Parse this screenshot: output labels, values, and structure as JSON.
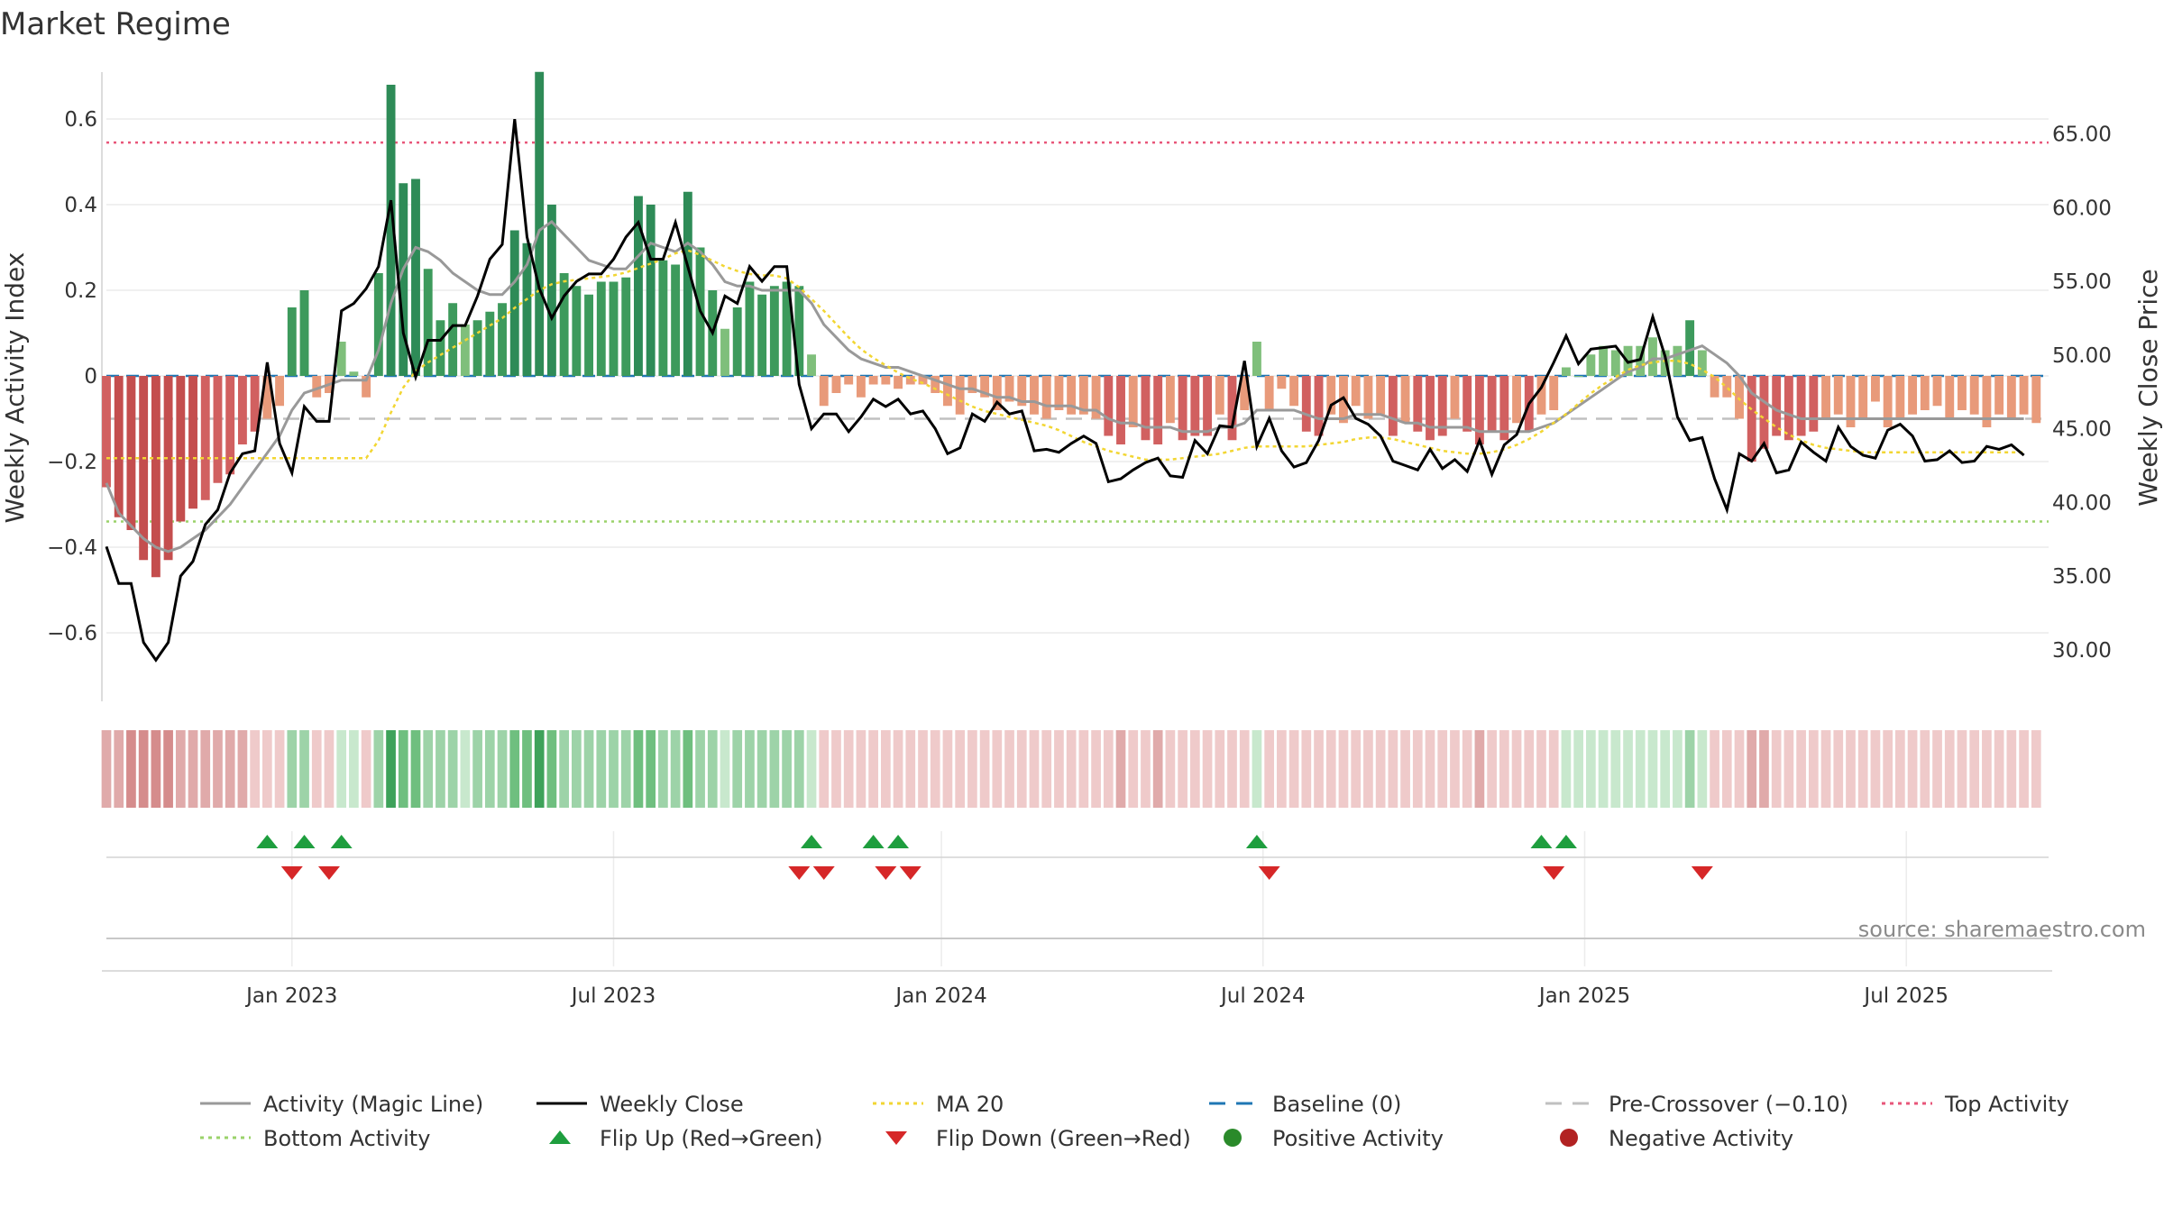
{
  "title": "Market Regime",
  "source": "source: sharemaestro.com",
  "chart_data": {
    "type": "bar",
    "title": "Market Regime",
    "ylabel_left": "Weekly Activity Index",
    "ylabel_right": "Weekly Close Price",
    "ylim_left": [
      -0.76,
      0.72
    ],
    "ylim_right": [
      26.5,
      69.5
    ],
    "left_ticks": [
      0.6,
      0.4,
      0.2,
      0,
      -0.2,
      -0.4,
      -0.6
    ],
    "left_tick_labels": [
      "0.6",
      "0.4",
      "0.2",
      "0",
      "−0.2",
      "−0.4",
      "−0.6"
    ],
    "right_ticks": [
      65,
      60,
      55,
      50,
      45,
      40,
      35,
      30
    ],
    "right_tick_labels": [
      "65.00",
      "60.00",
      "55.00",
      "50.00",
      "45.00",
      "40.00",
      "35.00",
      "30.00"
    ],
    "x_tick_labels": [
      "Jan 2023",
      "Jul 2023",
      "Jan 2024",
      "Jul 2024",
      "Jan 2025",
      "Jul 2025"
    ],
    "x_tick_weeks": [
      15,
      41,
      67.5,
      93.5,
      119.5,
      145.5
    ],
    "weeks": 158,
    "reference_lines": {
      "top_activity": 0.545,
      "bottom_activity": -0.34,
      "pre_crossover": -0.1,
      "baseline": 0
    },
    "activity_values": [
      -0.26,
      -0.33,
      -0.36,
      -0.43,
      -0.47,
      -0.43,
      -0.34,
      -0.31,
      -0.29,
      -0.25,
      -0.23,
      -0.16,
      -0.13,
      -0.1,
      -0.07,
      0.16,
      0.2,
      -0.05,
      -0.04,
      0.08,
      0.01,
      -0.05,
      0.24,
      0.68,
      0.45,
      0.46,
      0.25,
      0.13,
      0.17,
      0.12,
      0.13,
      0.15,
      0.17,
      0.34,
      0.31,
      0.71,
      0.4,
      0.24,
      0.21,
      0.19,
      0.22,
      0.22,
      0.23,
      0.42,
      0.4,
      0.27,
      0.26,
      0.43,
      0.3,
      0.2,
      0.11,
      0.16,
      0.22,
      0.19,
      0.21,
      0.22,
      0.21,
      0.05,
      -0.07,
      -0.04,
      -0.02,
      -0.05,
      -0.02,
      -0.02,
      -0.03,
      -0.02,
      -0.02,
      -0.04,
      -0.07,
      -0.09,
      -0.04,
      -0.05,
      -0.08,
      -0.06,
      -0.07,
      -0.09,
      -0.1,
      -0.08,
      -0.09,
      -0.09,
      -0.1,
      -0.14,
      -0.16,
      -0.12,
      -0.15,
      -0.16,
      -0.11,
      -0.15,
      -0.14,
      -0.14,
      -0.09,
      -0.15,
      -0.08,
      0.08,
      -0.08,
      -0.03,
      -0.07,
      -0.13,
      -0.14,
      -0.09,
      -0.11,
      -0.07,
      -0.1,
      -0.09,
      -0.14,
      -0.11,
      -0.13,
      -0.15,
      -0.14,
      -0.1,
      -0.13,
      -0.16,
      -0.13,
      -0.15,
      -0.11,
      -0.13,
      -0.09,
      -0.08,
      0.02,
      0.0,
      0.05,
      0.07,
      0.06,
      0.07,
      0.07,
      0.09,
      0.06,
      0.07,
      0.13,
      0.06,
      -0.05,
      -0.05,
      -0.1,
      -0.2,
      -0.17,
      -0.14,
      -0.15,
      -0.14,
      -0.13,
      -0.1,
      -0.09,
      -0.12,
      -0.1,
      -0.06,
      -0.12,
      -0.1,
      -0.09,
      -0.08,
      -0.07,
      -0.1,
      -0.08,
      -0.09,
      -0.12,
      -0.09,
      -0.1,
      -0.09,
      -0.11
    ],
    "magic_line": [
      -0.25,
      -0.32,
      -0.35,
      -0.38,
      -0.4,
      -0.41,
      -0.4,
      -0.38,
      -0.36,
      -0.33,
      -0.3,
      -0.26,
      -0.22,
      -0.18,
      -0.14,
      -0.08,
      -0.04,
      -0.03,
      -0.02,
      -0.01,
      -0.01,
      -0.01,
      0.06,
      0.17,
      0.25,
      0.3,
      0.29,
      0.27,
      0.24,
      0.22,
      0.2,
      0.19,
      0.19,
      0.22,
      0.26,
      0.34,
      0.36,
      0.33,
      0.3,
      0.27,
      0.26,
      0.25,
      0.25,
      0.28,
      0.31,
      0.3,
      0.29,
      0.31,
      0.29,
      0.26,
      0.22,
      0.21,
      0.21,
      0.2,
      0.2,
      0.2,
      0.2,
      0.17,
      0.12,
      0.09,
      0.06,
      0.04,
      0.03,
      0.02,
      0.02,
      0.01,
      0.0,
      -0.01,
      -0.02,
      -0.03,
      -0.03,
      -0.04,
      -0.05,
      -0.05,
      -0.06,
      -0.06,
      -0.07,
      -0.07,
      -0.07,
      -0.08,
      -0.08,
      -0.1,
      -0.11,
      -0.11,
      -0.12,
      -0.12,
      -0.12,
      -0.13,
      -0.13,
      -0.13,
      -0.12,
      -0.12,
      -0.11,
      -0.08,
      -0.08,
      -0.08,
      -0.08,
      -0.09,
      -0.1,
      -0.1,
      -0.1,
      -0.09,
      -0.09,
      -0.09,
      -0.1,
      -0.11,
      -0.11,
      -0.12,
      -0.12,
      -0.12,
      -0.12,
      -0.13,
      -0.13,
      -0.13,
      -0.13,
      -0.13,
      -0.12,
      -0.11,
      -0.09,
      -0.07,
      -0.05,
      -0.03,
      -0.01,
      0.01,
      0.02,
      0.04,
      0.04,
      0.05,
      0.06,
      0.07,
      0.05,
      0.03,
      0.0,
      -0.04,
      -0.06,
      -0.08,
      -0.09,
      -0.1,
      -0.1,
      -0.1,
      -0.1,
      -0.1,
      -0.1,
      -0.1,
      -0.1,
      -0.1,
      -0.1,
      -0.1,
      -0.1,
      -0.1,
      -0.1,
      -0.1,
      -0.1,
      -0.1,
      -0.1,
      -0.1
    ],
    "weekly_close": [
      37,
      34.5,
      34.5,
      30.5,
      29.3,
      30.5,
      35,
      36,
      38.5,
      39.5,
      42,
      43.3,
      43.5,
      49.5,
      44,
      42,
      46.5,
      45.5,
      45.5,
      53,
      53.5,
      54.5,
      56,
      60.5,
      51.5,
      48.5,
      51,
      51,
      52,
      52,
      54,
      56.5,
      57.5,
      66,
      58,
      54.5,
      52.5,
      54,
      55,
      55.5,
      55.5,
      56.5,
      58,
      59,
      56.5,
      56.5,
      59,
      56,
      53,
      51.5,
      54,
      53.5,
      56,
      55,
      56,
      56,
      48,
      45,
      46,
      46,
      44.8,
      45.8,
      47,
      46.5,
      47,
      46,
      46.2,
      45,
      43.3,
      43.7,
      46,
      45.5,
      46.8,
      46,
      46.2,
      43.5,
      43.6,
      43.4,
      44,
      44.5,
      44,
      41.4,
      41.6,
      42.2,
      42.7,
      43,
      41.8,
      41.7,
      44.2,
      43.3,
      45.2,
      45.1,
      49.6,
      43.8,
      45.7,
      43.5,
      42.4,
      42.7,
      44.2,
      46.6,
      47.1,
      45.7,
      45.3,
      44.5,
      42.8,
      42.5,
      42.2,
      43.6,
      42.3,
      42.9,
      42.1,
      44.2,
      41.9,
      43.9,
      44.6,
      46.7,
      47.8,
      49.5,
      51.3,
      49.4,
      50.4,
      50.5,
      50.6,
      49.5,
      49.7,
      52.6,
      49.9,
      45.8,
      44.2,
      44.4,
      41.6,
      39.5,
      43.3,
      42.8,
      44,
      42,
      42.2,
      44.1,
      43.4,
      42.8,
      45.1,
      43.8,
      43.2,
      43,
      44.9,
      45.3,
      44.5,
      42.8,
      42.9,
      43.5,
      42.7,
      42.8,
      43.8,
      43.6,
      43.9,
      43.2
    ],
    "ma20": [
      43,
      43,
      43,
      43,
      43,
      43,
      43,
      43,
      43,
      43,
      43,
      43,
      43,
      43,
      43,
      43,
      43,
      43,
      43,
      43,
      43,
      43,
      44.2,
      46.1,
      47.8,
      48.9,
      49.5,
      50,
      50.5,
      51,
      51.5,
      52,
      52.5,
      53.2,
      53.8,
      54.4,
      54.8,
      55,
      55.1,
      55.2,
      55.3,
      55.4,
      55.6,
      55.9,
      56.2,
      56.5,
      56.9,
      57.1,
      56.8,
      56.4,
      56,
      55.7,
      55.5,
      55.4,
      55.4,
      55.2,
      54.6,
      53.8,
      53,
      52.1,
      51.2,
      50.4,
      49.8,
      49.3,
      48.8,
      48.4,
      48.1,
      47.7,
      47.3,
      46.9,
      46.5,
      46.2,
      46,
      45.8,
      45.6,
      45.4,
      45.2,
      44.9,
      44.5,
      44.1,
      43.8,
      43.5,
      43.3,
      43.1,
      42.9,
      42.9,
      42.9,
      43,
      43.1,
      43.2,
      43.3,
      43.5,
      43.7,
      43.8,
      43.8,
      43.8,
      43.8,
      43.8,
      43.9,
      44,
      44.1,
      44.3,
      44.4,
      44.4,
      44.3,
      44.1,
      43.9,
      43.7,
      43.5,
      43.4,
      43.3,
      43.3,
      43.4,
      43.6,
      43.9,
      44.3,
      44.8,
      45.4,
      46,
      46.7,
      47.4,
      48,
      48.5,
      49,
      49.3,
      49.5,
      49.6,
      49.6,
      49.4,
      49,
      48.5,
      47.8,
      47,
      46.3,
      45.7,
      45.1,
      44.6,
      44.2,
      43.9,
      43.7,
      43.6,
      43.5,
      43.4,
      43.4,
      43.4,
      43.4,
      43.4,
      43.4,
      43.4,
      43.4,
      43.4,
      43.4,
      43.4,
      43.4,
      43.4,
      43.4
    ],
    "flip_up_weeks": [
      13,
      16,
      19,
      57,
      62,
      64,
      93,
      116,
      118
    ],
    "flip_down_weeks": [
      15,
      18,
      56,
      58,
      63,
      65,
      94,
      117,
      129
    ],
    "series": [
      {
        "name": "Activity (Magic Line)",
        "color": "#999999",
        "style": "solid"
      },
      {
        "name": "Weekly Close",
        "color": "#000000",
        "style": "solid"
      },
      {
        "name": "MA 20",
        "color": "#f2d633",
        "style": "dotted"
      },
      {
        "name": "Baseline (0)",
        "color": "#1f77b4",
        "style": "dashed"
      },
      {
        "name": "Pre-Crossover (−0.10)",
        "color": "#c0c0c0",
        "style": "dashed"
      },
      {
        "name": "Top Activity",
        "color": "#e8567a",
        "style": "dotted"
      },
      {
        "name": "Bottom Activity",
        "color": "#9ad26a",
        "style": "dotted"
      },
      {
        "name": "Flip Up (Red→Green)",
        "color": "#1e9e3e",
        "marker": "triangle-up"
      },
      {
        "name": "Flip Down (Green→Red)",
        "color": "#d62728",
        "marker": "triangle-down"
      },
      {
        "name": "Positive Activity",
        "color": "#2a8a2a",
        "marker": "circle"
      },
      {
        "name": "Negative Activity",
        "color": "#b22222",
        "marker": "circle"
      }
    ]
  }
}
